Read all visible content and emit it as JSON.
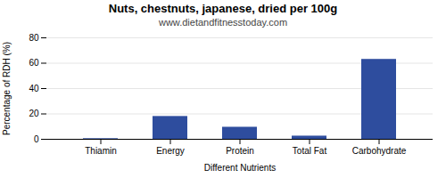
{
  "chart_data": {
    "type": "bar",
    "title": "Nuts, chestnuts, japanese, dried per 100g",
    "subtitle": "www.dietandfitnesstoday.com",
    "xlabel": "Different Nutrients",
    "ylabel": "Percentage of RDH (%)",
    "categories": [
      "Thiamin",
      "Energy",
      "Protein",
      "Total Fat",
      "Carbohydrate"
    ],
    "values": [
      0.5,
      18.0,
      9.5,
      2.5,
      63.0
    ],
    "color": "#2e4d9e",
    "ylim": [
      0,
      80
    ],
    "yticks": [
      0,
      20,
      40,
      60,
      80
    ],
    "grid": true
  }
}
